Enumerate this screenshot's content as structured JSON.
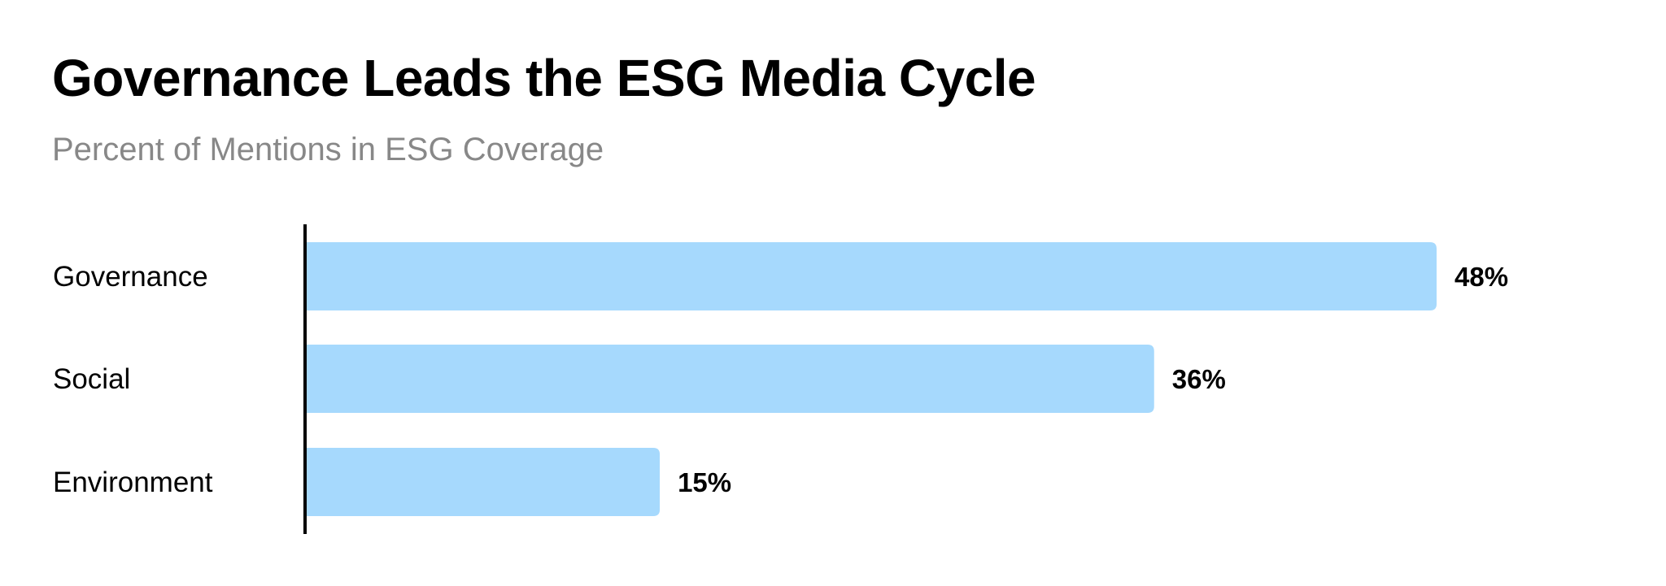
{
  "chart_data": {
    "type": "bar",
    "orientation": "horizontal",
    "title": "Governance Leads the ESG Media Cycle",
    "subtitle": "Percent of Mentions in ESG Coverage",
    "categories": [
      "Governance",
      "Social",
      "Environment"
    ],
    "values": [
      48,
      36,
      15
    ],
    "value_labels": [
      "48%",
      "36%",
      "15%"
    ],
    "xlim": [
      0,
      48
    ],
    "grid": false,
    "bar_color": "#a6d9fd"
  }
}
